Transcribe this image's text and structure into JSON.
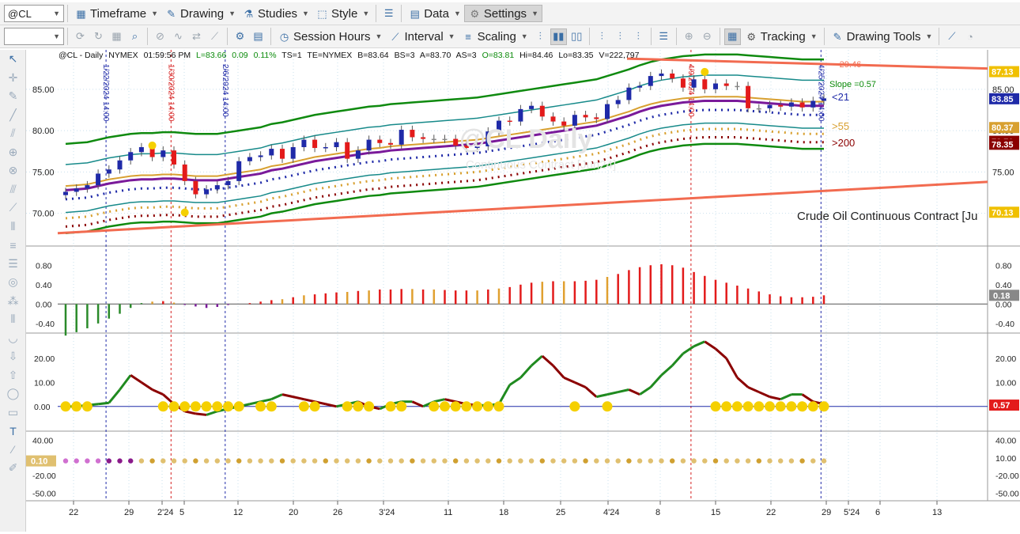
{
  "toolbar1": {
    "symbol": "@CL",
    "timeframe": "Timeframe",
    "drawing": "Drawing",
    "studies": "Studies",
    "style": "Style",
    "data": "Data",
    "settings": "Settings"
  },
  "toolbar2": {
    "session_hours": "Session Hours",
    "interval": "Interval",
    "scaling": "Scaling",
    "tracking": "Tracking",
    "drawing_tools": "Drawing Tools"
  },
  "header": {
    "symbol": "@CL - Daily",
    "exchange": "NYMEX",
    "time": "01:59:56 PM",
    "last": "L=83.66",
    "change": "0.09",
    "pct": "0.11%",
    "ts": "TS=1",
    "te": "TE=NYMEX",
    "bid": "B=83.64",
    "bs": "BS=3",
    "ask": "A=83.70",
    "as": "AS=3",
    "open": "O=83.81",
    "hi": "Hi=84.46",
    "lo": "Lo=83.35",
    "vol": "V=222,797"
  },
  "annotations": {
    "trend_value": "-29.46",
    "slope": "Slope =0.57",
    "lt21": "<21",
    "gt55": ">55",
    "gt200": ">200",
    "description": "Crude Oil Continuous Contract [Ju",
    "watermark": "@CL Daily",
    "watermark_sub": "Continuous Contract [Jun24]",
    "vlines": [
      "1/22/2024 14:00",
      "1/30/2024 14:00",
      "2/6/2024 14:00",
      "4/9/2024 14:00",
      "4/25/2024 14:00"
    ]
  },
  "price_axis": {
    "ticks": [
      "85.00",
      "80.00",
      "75.00",
      "70.00"
    ],
    "markers": [
      {
        "label": "87.13",
        "color": "#f0c000"
      },
      {
        "label": "83.85",
        "color": "#1f2aa8"
      },
      {
        "label": "80.37",
        "color": "#d8a030"
      },
      {
        "label": "78.71",
        "color": "#8b0000"
      },
      {
        "label": "78.35",
        "color": "#8b0000"
      },
      {
        "label": "70.13",
        "color": "#f0c000"
      }
    ]
  },
  "osc1_axis": {
    "ticks": [
      "0.80",
      "0.40",
      "0.00",
      "-0.40"
    ],
    "marker": "0.18"
  },
  "osc2_axis": {
    "ticks": [
      "20.00",
      "10.00",
      "0.00"
    ],
    "marker": "0.57"
  },
  "osc3_axis": {
    "ticks": [
      "40.00",
      "10.00",
      "-20.00",
      "-50.00"
    ],
    "left_marker": "0.10"
  },
  "time_axis": [
    "22",
    "29",
    "2'24",
    "5",
    "12",
    "20",
    "26",
    "3'24",
    "11",
    "18",
    "25",
    "4'24",
    "8",
    "15",
    "22",
    "29",
    "5'24",
    "6",
    "13"
  ],
  "chart_data": {
    "type": "candlestick",
    "title": "@CL - Daily",
    "ylim": [
      67,
      89
    ],
    "dates": [
      "1/17",
      "1/18",
      "1/19",
      "1/22",
      "1/23",
      "1/24",
      "1/25",
      "1/26",
      "1/29",
      "1/30",
      "1/31",
      "2/1",
      "2/2",
      "2/5",
      "2/6",
      "2/7",
      "2/8",
      "2/9",
      "2/12",
      "2/13",
      "2/14",
      "2/15",
      "2/16",
      "2/20",
      "2/21",
      "2/22",
      "2/23",
      "2/26",
      "2/27",
      "2/28",
      "2/29",
      "3/1",
      "3/4",
      "3/5",
      "3/6",
      "3/7",
      "3/8",
      "3/11",
      "3/12",
      "3/13",
      "3/14",
      "3/15",
      "3/18",
      "3/19",
      "3/20",
      "3/21",
      "3/22",
      "3/25",
      "3/26",
      "3/27",
      "3/28",
      "4/1",
      "4/2",
      "4/3",
      "4/4",
      "4/5",
      "4/8",
      "4/9",
      "4/10",
      "4/11",
      "4/12",
      "4/15",
      "4/16",
      "4/17",
      "4/18",
      "4/19",
      "4/22",
      "4/23",
      "4/24",
      "4/25",
      "4/26"
    ],
    "close": [
      72.6,
      73.0,
      73.4,
      74.8,
      75.3,
      76.4,
      77.4,
      78.0,
      76.8,
      77.6,
      75.9,
      73.9,
      72.3,
      72.9,
      73.4,
      73.9,
      76.3,
      76.8,
      77.0,
      77.8,
      76.6,
      78.0,
      78.9,
      77.9,
      78.0,
      78.6,
      76.6,
      77.6,
      78.9,
      78.5,
      78.3,
      80.1,
      79.2,
      79.0,
      79.0,
      79.0,
      78.2,
      77.9,
      78.1,
      79.9,
      81.2,
      81.1,
      82.6,
      83.0,
      81.7,
      81.1,
      80.6,
      81.9,
      81.6,
      81.4,
      83.2,
      83.7,
      85.2,
      85.4,
      86.6,
      86.9,
      86.3,
      85.2,
      86.2,
      85.0,
      85.7,
      85.4,
      85.4,
      82.7,
      82.7,
      83.1,
      82.9,
      83.4,
      82.8,
      83.6,
      83.9
    ],
    "ma21": [
      73.0,
      73.1,
      73.2,
      73.5,
      73.8,
      74.0,
      74.2,
      74.3,
      74.3,
      74.4,
      74.4,
      74.3,
      74.2,
      74.2,
      74.2,
      74.4,
      74.6,
      74.8,
      75.0,
      75.4,
      75.6,
      75.9,
      76.2,
      76.5,
      76.7,
      76.9,
      77.1,
      77.3,
      77.5,
      77.6,
      77.8,
      77.9,
      78.0,
      78.1,
      78.2,
      78.3,
      78.4,
      78.5,
      78.6,
      78.8,
      79.0,
      79.2,
      79.4,
      79.6,
      79.8,
      80.0,
      80.2,
      80.4,
      80.6,
      80.8,
      81.2,
      81.6,
      82.0,
      82.5,
      82.9,
      83.2,
      83.4,
      83.6,
      83.7,
      83.8,
      83.8,
      83.8,
      83.8,
      83.7,
      83.6,
      83.5,
      83.4,
      83.3,
      83.2,
      83.2,
      83.2
    ]
  }
}
